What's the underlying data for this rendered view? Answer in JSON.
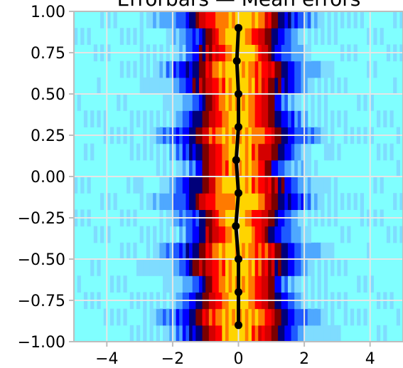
{
  "chart_data": {
    "type": "heatmap",
    "title": "Errorbars — Mean errors",
    "xlabel": "",
    "ylabel": "",
    "xlim": [
      -5,
      5
    ],
    "ylim": [
      -1,
      1
    ],
    "x_ticks": [
      -4,
      -2,
      0,
      2,
      4
    ],
    "x_tick_labels": [
      "−4",
      "−2",
      "0",
      "2",
      "4"
    ],
    "y_ticks": [
      1.0,
      0.75,
      0.5,
      0.25,
      0.0,
      -0.25,
      -0.5,
      -0.75,
      -1.0
    ],
    "y_tick_labels": [
      "1.00",
      "0.75",
      "0.50",
      "0.25",
      "0.00",
      "−0.25",
      "−0.50",
      "−0.75",
      "−1.00"
    ],
    "grid": true,
    "background_color": "#80ffff",
    "heatmap_colors": [
      "#80ffff",
      "#7fdcff",
      "#4fa8ff",
      "#1e5aff",
      "#0000ff",
      "#00007a",
      "#7a0000",
      "#d40000",
      "#ff0000",
      "#ff7a00",
      "#ffd400"
    ],
    "mean_line": {
      "color": "#000000",
      "x": [
        0.0,
        -0.05,
        0.0,
        0.0,
        -0.07,
        0.0,
        -0.08,
        0.0,
        0.0,
        0.0
      ],
      "y": [
        0.9,
        0.7,
        0.5,
        0.3,
        0.1,
        -0.1,
        -0.3,
        -0.5,
        -0.7,
        -0.9
      ]
    }
  }
}
